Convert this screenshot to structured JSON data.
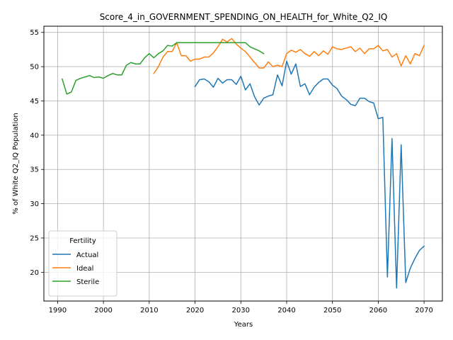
{
  "chart_data": {
    "type": "line",
    "title": "Score_4_in_GOVERNMENT_SPENDING_ON_HEALTH_for_White_Q2_IQ",
    "xlabel": "Years",
    "ylabel": "% of White Q2_IQ Population",
    "xlim": [
      1987,
      2074
    ],
    "ylim": [
      15.8,
      55.9
    ],
    "xticks": [
      1990,
      2000,
      2010,
      2020,
      2030,
      2040,
      2050,
      2060,
      2070
    ],
    "yticks": [
      20,
      25,
      30,
      35,
      40,
      45,
      50,
      55
    ],
    "grid": true,
    "legend": {
      "title": "Fertility",
      "location": "lower-left"
    },
    "series": [
      {
        "name": "Actual",
        "color": "#1f77b4",
        "points": [
          [
            2020,
            47.1
          ],
          [
            2021,
            48.1
          ],
          [
            2022,
            48.2
          ],
          [
            2023,
            47.8
          ],
          [
            2024,
            47.0
          ],
          [
            2025,
            48.3
          ],
          [
            2026,
            47.6
          ],
          [
            2027,
            48.1
          ],
          [
            2028,
            48.1
          ],
          [
            2029,
            47.4
          ],
          [
            2030,
            48.6
          ],
          [
            2031,
            46.6
          ],
          [
            2032,
            47.5
          ],
          [
            2033,
            45.6
          ],
          [
            2034,
            44.4
          ],
          [
            2035,
            45.4
          ],
          [
            2036,
            45.7
          ],
          [
            2037,
            45.9
          ],
          [
            2038,
            48.8
          ],
          [
            2039,
            47.2
          ],
          [
            2040,
            50.8
          ],
          [
            2041,
            48.9
          ],
          [
            2042,
            50.4
          ],
          [
            2043,
            47.1
          ],
          [
            2044,
            47.5
          ],
          [
            2045,
            45.9
          ],
          [
            2046,
            47.0
          ],
          [
            2047,
            47.7
          ],
          [
            2048,
            48.2
          ],
          [
            2049,
            48.2
          ],
          [
            2050,
            47.3
          ],
          [
            2051,
            46.8
          ],
          [
            2052,
            45.7
          ],
          [
            2053,
            45.2
          ],
          [
            2054,
            44.5
          ],
          [
            2055,
            44.3
          ],
          [
            2056,
            45.4
          ],
          [
            2057,
            45.4
          ],
          [
            2058,
            44.9
          ],
          [
            2059,
            44.7
          ],
          [
            2060,
            42.4
          ],
          [
            2061,
            42.6
          ],
          [
            2062,
            19.3
          ],
          [
            2063,
            39.5
          ],
          [
            2064,
            17.7
          ],
          [
            2065,
            38.6
          ],
          [
            2066,
            18.5
          ],
          [
            2067,
            20.6
          ],
          [
            2068,
            22.0
          ],
          [
            2069,
            23.2
          ],
          [
            2070,
            23.8
          ]
        ]
      },
      {
        "name": "Ideal",
        "color": "#ff7f0e",
        "points": [
          [
            2011,
            49.0
          ],
          [
            2012,
            50.0
          ],
          [
            2013,
            51.4
          ],
          [
            2014,
            52.2
          ],
          [
            2015,
            52.2
          ],
          [
            2016,
            53.5
          ],
          [
            2017,
            51.6
          ],
          [
            2018,
            51.6
          ],
          [
            2019,
            50.8
          ],
          [
            2020,
            51.1
          ],
          [
            2021,
            51.1
          ],
          [
            2022,
            51.4
          ],
          [
            2023,
            51.4
          ],
          [
            2024,
            52.0
          ],
          [
            2025,
            52.9
          ],
          [
            2026,
            54.0
          ],
          [
            2027,
            53.6
          ],
          [
            2028,
            54.1
          ],
          [
            2029,
            53.3
          ],
          [
            2030,
            52.7
          ],
          [
            2031,
            52.2
          ],
          [
            2032,
            51.4
          ],
          [
            2033,
            50.6
          ],
          [
            2034,
            49.8
          ],
          [
            2035,
            49.8
          ],
          [
            2036,
            50.7
          ],
          [
            2037,
            50.0
          ],
          [
            2038,
            50.2
          ],
          [
            2039,
            50.0
          ],
          [
            2040,
            51.9
          ],
          [
            2041,
            52.4
          ],
          [
            2042,
            52.1
          ],
          [
            2043,
            52.5
          ],
          [
            2044,
            51.9
          ],
          [
            2045,
            51.5
          ],
          [
            2046,
            52.2
          ],
          [
            2047,
            51.6
          ],
          [
            2048,
            52.3
          ],
          [
            2049,
            51.8
          ],
          [
            2050,
            52.9
          ],
          [
            2051,
            52.6
          ],
          [
            2052,
            52.5
          ],
          [
            2053,
            52.7
          ],
          [
            2054,
            52.9
          ],
          [
            2055,
            52.2
          ],
          [
            2056,
            52.7
          ],
          [
            2057,
            51.9
          ],
          [
            2058,
            52.6
          ],
          [
            2059,
            52.6
          ],
          [
            2060,
            53.1
          ],
          [
            2061,
            52.3
          ],
          [
            2062,
            52.5
          ],
          [
            2063,
            51.4
          ],
          [
            2064,
            51.9
          ],
          [
            2065,
            50.1
          ],
          [
            2066,
            51.6
          ],
          [
            2067,
            50.4
          ],
          [
            2068,
            51.9
          ],
          [
            2069,
            51.6
          ],
          [
            2070,
            53.1
          ]
        ]
      },
      {
        "name": "Sterile",
        "color": "#2ca02c",
        "points": [
          [
            1991,
            48.2
          ],
          [
            1992,
            46.0
          ],
          [
            1993,
            46.3
          ],
          [
            1994,
            48.0
          ],
          [
            1995,
            48.3
          ],
          [
            1996,
            48.5
          ],
          [
            1997,
            48.7
          ],
          [
            1998,
            48.4
          ],
          [
            1999,
            48.5
          ],
          [
            2000,
            48.3
          ],
          [
            2001,
            48.7
          ],
          [
            2002,
            49.0
          ],
          [
            2003,
            48.8
          ],
          [
            2004,
            48.8
          ],
          [
            2005,
            50.2
          ],
          [
            2006,
            50.6
          ],
          [
            2007,
            50.4
          ],
          [
            2008,
            50.4
          ],
          [
            2009,
            51.3
          ],
          [
            2010,
            51.9
          ],
          [
            2011,
            51.3
          ],
          [
            2012,
            51.9
          ],
          [
            2013,
            52.3
          ],
          [
            2014,
            53.1
          ],
          [
            2015,
            53.0
          ],
          [
            2016,
            53.5
          ],
          [
            2017,
            53.5
          ],
          [
            2018,
            53.5
          ],
          [
            2019,
            53.5
          ],
          [
            2020,
            53.5
          ],
          [
            2021,
            53.5
          ],
          [
            2022,
            53.5
          ],
          [
            2023,
            53.5
          ],
          [
            2024,
            53.5
          ],
          [
            2025,
            53.5
          ],
          [
            2026,
            53.5
          ],
          [
            2027,
            53.5
          ],
          [
            2028,
            53.5
          ],
          [
            2029,
            53.5
          ],
          [
            2030,
            53.5
          ],
          [
            2031,
            53.5
          ],
          [
            2032,
            52.9
          ],
          [
            2033,
            52.6
          ],
          [
            2034,
            52.3
          ],
          [
            2035,
            51.9
          ]
        ]
      }
    ]
  }
}
